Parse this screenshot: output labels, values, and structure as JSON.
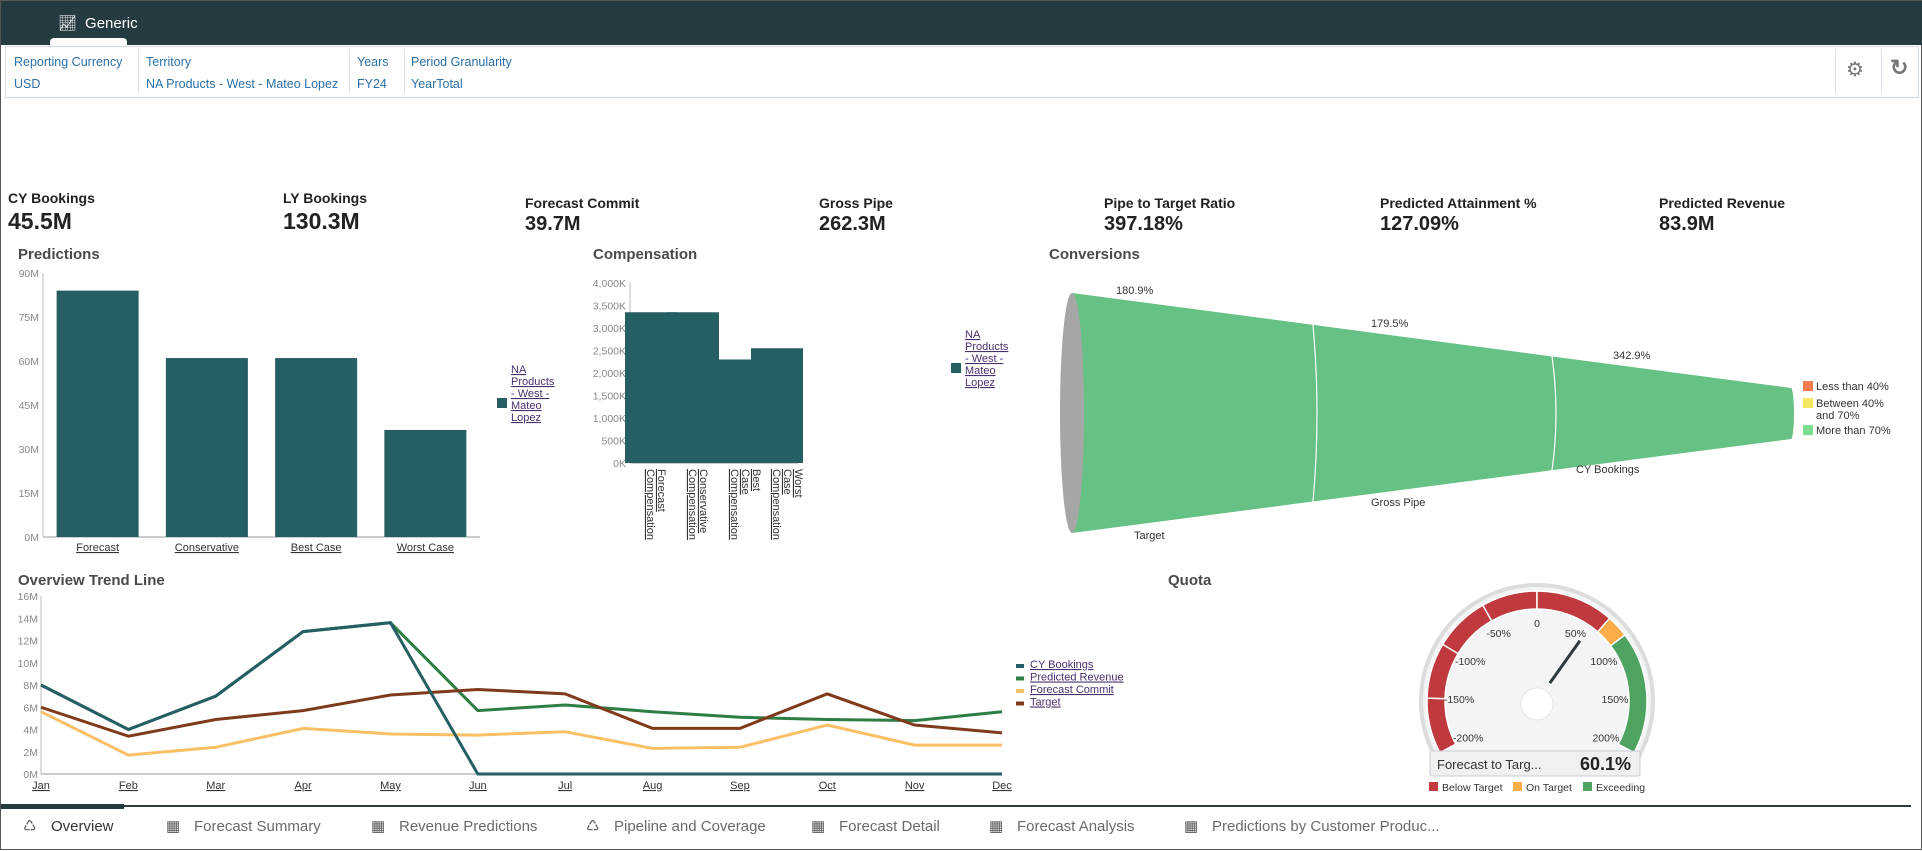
{
  "header": {
    "tab_label": "Generic",
    "tab_icon": "chart-icon"
  },
  "filters": [
    {
      "label": "Reporting Currency",
      "value": "USD"
    },
    {
      "label": "Territory",
      "value": "NA Products - West - Mateo Lopez"
    },
    {
      "label": "Years",
      "value": "FY24"
    },
    {
      "label": "Period Granularity",
      "value": "YearTotal"
    }
  ],
  "toolbar": {
    "settings_icon": "gear-icon",
    "refresh_icon": "refresh-icon"
  },
  "kpis": [
    {
      "label": "CY Bookings",
      "value": "45.5M"
    },
    {
      "label": "LY Bookings",
      "value": "130.3M"
    },
    {
      "label": "Forecast Commit",
      "value": "39.7M"
    },
    {
      "label": "Gross Pipe",
      "value": "262.3M"
    },
    {
      "label": "Pipe to Target Ratio",
      "value": "397.18%"
    },
    {
      "label": "Predicted Attainment %",
      "value": "127.09%"
    },
    {
      "label": "Predicted Revenue",
      "value": "83.9M"
    }
  ],
  "chart_data": [
    {
      "type": "bar",
      "title": "Predictions",
      "categories": [
        "Forecast",
        "Conservative",
        "Best Case",
        "Worst Case"
      ],
      "series": [
        {
          "name": "NA Products - West - Mateo Lopez",
          "values": [
            84,
            61,
            61,
            36.5
          ]
        }
      ],
      "yticks": [
        "0M",
        "15M",
        "30M",
        "45M",
        "60M",
        "75M",
        "90M"
      ],
      "ylim": [
        0,
        90
      ],
      "color": "#255e63",
      "legend": "right"
    },
    {
      "type": "bar",
      "title": "Compensation",
      "categories": [
        "Forecast Compensation",
        "Conservative Compensation",
        "Best Case Compensation",
        "Worst Case Compensation"
      ],
      "series": [
        {
          "name": "NA Products - West - Mateo Lopez",
          "values": [
            3350,
            3350,
            2300,
            2550
          ]
        }
      ],
      "yticks": [
        "0K",
        "500K",
        "1,000K",
        "1,500K",
        "2,000K",
        "2,500K",
        "3,000K",
        "3,500K",
        "4,000K"
      ],
      "ylim": [
        0,
        4000
      ],
      "color": "#255e63",
      "legend": "right"
    },
    {
      "type": "funnel",
      "title": "Conversions",
      "stages": [
        "Target",
        "Gross Pipe",
        "CY Bookings"
      ],
      "conversion_labels": [
        "180.9%",
        "179.5%",
        "342.9%"
      ],
      "legend": [
        {
          "label": "Less than 40%",
          "color": "#f47b50"
        },
        {
          "label": "Between 40% and 70%",
          "color": "#f5e663"
        },
        {
          "label": "More than 70%",
          "color": "#7bde8f"
        }
      ],
      "fill": "#66c184"
    },
    {
      "type": "line",
      "title": "Overview Trend Line",
      "categories": [
        "Jan",
        "Feb",
        "Mar",
        "Apr",
        "May",
        "Jun",
        "Jul",
        "Aug",
        "Sep",
        "Oct",
        "Nov",
        "Dec"
      ],
      "yticks": [
        "0M",
        "2M",
        "4M",
        "6M",
        "8M",
        "10M",
        "12M",
        "14M",
        "16M"
      ],
      "ylim": [
        0,
        16
      ],
      "series": [
        {
          "name": "CY Bookings",
          "color": "#255e63",
          "values": [
            8,
            4,
            7,
            12.8,
            13.6,
            0,
            0,
            0,
            0,
            0,
            0,
            0
          ]
        },
        {
          "name": "Predicted Revenue",
          "color": "#2e7d45",
          "values": [
            8,
            4,
            7,
            12.8,
            13.6,
            5.7,
            6.2,
            5.6,
            5.1,
            4.9,
            4.8,
            5.6
          ]
        },
        {
          "name": "Forecast Commit",
          "color": "#fbbf66",
          "values": [
            5.6,
            1.7,
            2.4,
            4.1,
            3.6,
            3.5,
            3.8,
            2.3,
            2.4,
            4.4,
            2.6,
            2.6
          ]
        },
        {
          "name": "Target",
          "color": "#7f3a1b",
          "values": [
            6,
            3.4,
            4.9,
            5.7,
            7.1,
            7.6,
            7.2,
            4.1,
            4.1,
            7.2,
            4.4,
            3.7
          ]
        }
      ],
      "legend": "right"
    },
    {
      "type": "gauge",
      "title": "Quota",
      "tick_labels": [
        "-200%",
        "-150%",
        "-100%",
        "-50%",
        "0",
        "50%",
        "100%",
        "150%",
        "200%"
      ],
      "range": [
        -200,
        200
      ],
      "value": 60.1,
      "metric_label": "Forecast to Targ...",
      "value_label": "60.1%",
      "bands": [
        {
          "label": "Below Target",
          "color": "#c0393f",
          "to": 70
        },
        {
          "label": "On Target",
          "color": "#fbad4a",
          "to": 90
        },
        {
          "label": "Exceeding",
          "color": "#4fa361",
          "to": 200
        }
      ]
    }
  ],
  "tabs": [
    {
      "label": "Overview",
      "icon": "pipeline-icon",
      "active": true
    },
    {
      "label": "Forecast Summary",
      "icon": "table-edit-icon"
    },
    {
      "label": "Revenue Predictions",
      "icon": "table-edit-icon"
    },
    {
      "label": "Pipeline and Coverage",
      "icon": "pipeline-icon"
    },
    {
      "label": "Forecast Detail",
      "icon": "table-edit-icon"
    },
    {
      "label": "Forecast Analysis",
      "icon": "table-edit-icon"
    },
    {
      "label": "Predictions by Customer Produc...",
      "icon": "table-edit-icon"
    }
  ]
}
